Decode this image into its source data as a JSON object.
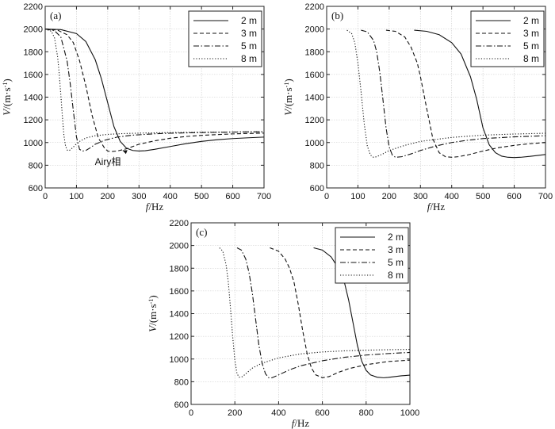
{
  "chart_data": [
    {
      "type": "line",
      "panel": "(a)",
      "xlabel_italic": "f",
      "xlabel_unit": "/Hz",
      "ylabel_italic": "V",
      "ylabel_unit": "/(m·s",
      "ylabel_sup": "-1",
      "ylabel_close": ")",
      "xlim": [
        0,
        700
      ],
      "ylim": [
        600,
        2200
      ],
      "xticks": [
        0,
        100,
        200,
        300,
        400,
        500,
        600,
        700
      ],
      "yticks": [
        600,
        800,
        1000,
        1200,
        1400,
        1600,
        1800,
        2000,
        2200
      ],
      "legend_position": "top-right",
      "annotation": {
        "text": "Airy相",
        "x": 230,
        "y": 860,
        "arrow_to_x": 248,
        "arrow_to_y": 930
      },
      "series": [
        {
          "name": "2 m",
          "style": "solid",
          "x": [
            0,
            50,
            100,
            130,
            160,
            180,
            200,
            220,
            240,
            260,
            280,
            300,
            320,
            350,
            400,
            450,
            500,
            550,
            600,
            650,
            700
          ],
          "y": [
            2000,
            1995,
            1960,
            1890,
            1730,
            1560,
            1350,
            1140,
            1010,
            950,
            930,
            925,
            928,
            940,
            965,
            990,
            1010,
            1025,
            1035,
            1042,
            1048
          ]
        },
        {
          "name": "3 m",
          "style": "dashed",
          "x": [
            0,
            40,
            70,
            90,
            110,
            130,
            150,
            170,
            190,
            200,
            210,
            230,
            260,
            300,
            350,
            400,
            450,
            500,
            550,
            600,
            650,
            700
          ],
          "y": [
            2000,
            1990,
            1950,
            1880,
            1720,
            1500,
            1240,
            1040,
            950,
            925,
            920,
            925,
            945,
            985,
            1015,
            1038,
            1053,
            1063,
            1070,
            1076,
            1080,
            1083
          ]
        },
        {
          "name": "5 m",
          "style": "dashdot",
          "x": [
            0,
            30,
            50,
            70,
            80,
            90,
            100,
            110,
            120,
            130,
            145,
            160,
            190,
            230,
            280,
            350,
            400,
            500,
            600,
            700
          ],
          "y": [
            2000,
            1985,
            1930,
            1720,
            1520,
            1280,
            1050,
            940,
            925,
            930,
            955,
            985,
            1020,
            1048,
            1065,
            1077,
            1082,
            1088,
            1092,
            1095
          ]
        },
        {
          "name": "8 m",
          "style": "dotted",
          "x": [
            0,
            20,
            30,
            40,
            45,
            50,
            55,
            60,
            65,
            70,
            75,
            80,
            90,
            100,
            110,
            130,
            160,
            200,
            250,
            300,
            400,
            500,
            600,
            700
          ],
          "y": [
            2000,
            1980,
            1920,
            1750,
            1600,
            1420,
            1230,
            1060,
            970,
            935,
            928,
            935,
            960,
            990,
            1010,
            1040,
            1060,
            1072,
            1079,
            1083,
            1088,
            1091,
            1093,
            1095
          ]
        }
      ]
    },
    {
      "type": "line",
      "panel": "(b)",
      "xlabel_italic": "f",
      "xlabel_unit": "/Hz",
      "ylabel_italic": "V",
      "ylabel_unit": "/(m·s",
      "ylabel_sup": "-1",
      "ylabel_close": ")",
      "xlim": [
        0,
        700
      ],
      "ylim": [
        600,
        2200
      ],
      "xticks": [
        0,
        100,
        200,
        300,
        400,
        500,
        600,
        700
      ],
      "yticks": [
        600,
        800,
        1000,
        1200,
        1400,
        1600,
        1800,
        2000,
        2200
      ],
      "legend_position": "top-right",
      "series": [
        {
          "name": "2 m",
          "style": "solid",
          "x": [
            280,
            320,
            360,
            400,
            430,
            460,
            480,
            500,
            520,
            540,
            560,
            580,
            600,
            620,
            650,
            680,
            700
          ],
          "y": [
            1990,
            1980,
            1950,
            1880,
            1780,
            1580,
            1380,
            1130,
            980,
            910,
            880,
            870,
            868,
            870,
            878,
            888,
            895
          ]
        },
        {
          "name": "3 m",
          "style": "dashed",
          "x": [
            190,
            220,
            250,
            270,
            290,
            300,
            320,
            340,
            360,
            380,
            400,
            420,
            450,
            500,
            550,
            600,
            650,
            700
          ],
          "y": [
            1990,
            1980,
            1930,
            1840,
            1700,
            1580,
            1300,
            1030,
            910,
            875,
            870,
            875,
            890,
            925,
            955,
            975,
            990,
            1000
          ]
        },
        {
          "name": "5 m",
          "style": "dashdot",
          "x": [
            110,
            130,
            150,
            160,
            170,
            180,
            190,
            200,
            210,
            220,
            240,
            270,
            300,
            350,
            400,
            450,
            500,
            600,
            700
          ],
          "y": [
            1990,
            1975,
            1900,
            1800,
            1620,
            1380,
            1130,
            960,
            890,
            870,
            875,
            900,
            930,
            970,
            1000,
            1020,
            1035,
            1050,
            1060
          ]
        },
        {
          "name": "8 m",
          "style": "dotted",
          "x": [
            65,
            80,
            90,
            100,
            110,
            120,
            130,
            140,
            150,
            160,
            180,
            200,
            250,
            300,
            400,
            500,
            600,
            700
          ],
          "y": [
            1990,
            1960,
            1880,
            1700,
            1450,
            1170,
            970,
            890,
            870,
            875,
            900,
            930,
            975,
            1010,
            1045,
            1065,
            1075,
            1082
          ]
        }
      ]
    },
    {
      "type": "line",
      "panel": "(c)",
      "xlabel_italic": "f",
      "xlabel_unit": "/Hz",
      "ylabel_italic": "V",
      "ylabel_unit": "/(m·s",
      "ylabel_sup": "-1",
      "ylabel_close": ")",
      "xlim": [
        0,
        1000
      ],
      "ylim": [
        600,
        2200
      ],
      "xticks": [
        0,
        200,
        400,
        600,
        800,
        1000
      ],
      "yticks": [
        600,
        800,
        1000,
        1200,
        1400,
        1600,
        1800,
        2000,
        2200
      ],
      "legend_position": "top-right",
      "series": [
        {
          "name": "2 m",
          "style": "solid",
          "x": [
            560,
            600,
            640,
            680,
            700,
            720,
            740,
            760,
            780,
            800,
            820,
            850,
            880,
            900,
            930,
            960,
            1000
          ],
          "y": [
            1980,
            1960,
            1900,
            1780,
            1680,
            1520,
            1320,
            1120,
            980,
            900,
            860,
            840,
            835,
            838,
            845,
            852,
            858
          ]
        },
        {
          "name": "3 m",
          "style": "dashed",
          "x": [
            360,
            400,
            430,
            450,
            470,
            490,
            510,
            530,
            550,
            570,
            600,
            630,
            670,
            720,
            800,
            900,
            1000
          ],
          "y": [
            1980,
            1950,
            1880,
            1800,
            1680,
            1480,
            1250,
            1050,
            920,
            860,
            835,
            845,
            880,
            915,
            950,
            978,
            990
          ]
        },
        {
          "name": "5 m",
          "style": "dashdot",
          "x": [
            210,
            230,
            250,
            265,
            280,
            295,
            310,
            325,
            340,
            355,
            370,
            400,
            450,
            500,
            600,
            700,
            800,
            900,
            1000
          ],
          "y": [
            1980,
            1960,
            1880,
            1760,
            1580,
            1350,
            1120,
            960,
            870,
            835,
            835,
            860,
            905,
            940,
            985,
            1015,
            1035,
            1048,
            1058
          ]
        },
        {
          "name": "8 m",
          "style": "dotted",
          "x": [
            130,
            145,
            160,
            170,
            180,
            190,
            200,
            210,
            220,
            235,
            250,
            280,
            320,
            400,
            500,
            600,
            700,
            800,
            900,
            1000
          ],
          "y": [
            1980,
            1950,
            1830,
            1680,
            1450,
            1200,
            990,
            870,
            840,
            845,
            870,
            920,
            960,
            1010,
            1045,
            1062,
            1072,
            1078,
            1082,
            1085
          ]
        }
      ]
    }
  ]
}
